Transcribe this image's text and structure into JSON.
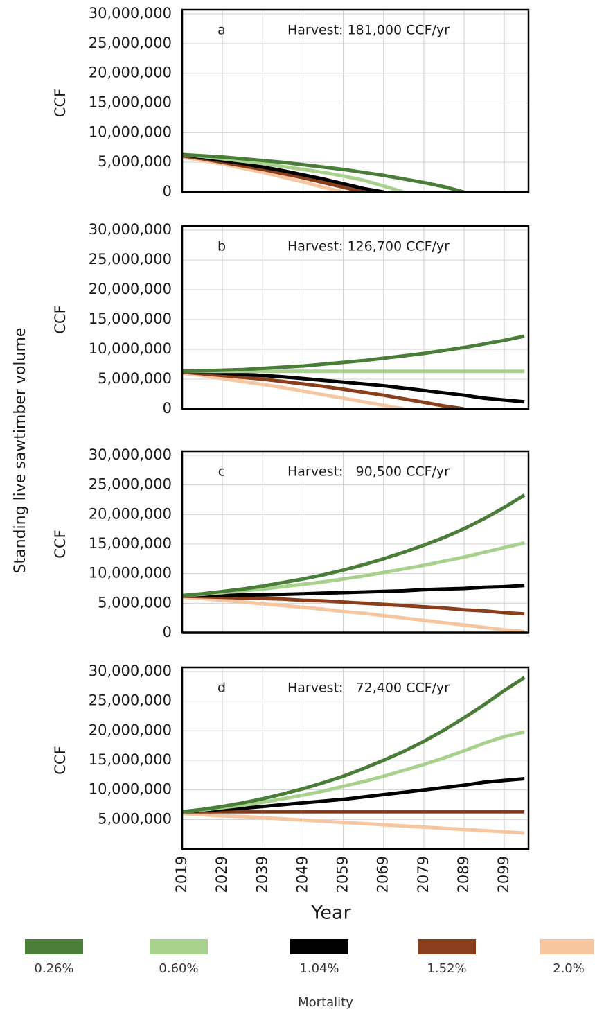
{
  "ylabel_common": "Standing live sawtimber volume",
  "legend": {
    "title": "Mortality"
  },
  "chart_data": [
    {
      "type": "line",
      "annotation_letter": "a",
      "annotation": "Harvest: 181,000 CCF/yr",
      "ylabel": "CCF",
      "x": [
        2019,
        2024,
        2029,
        2034,
        2039,
        2044,
        2049,
        2054,
        2059,
        2064,
        2069,
        2074,
        2079,
        2084,
        2089,
        2094,
        2099,
        2104
      ],
      "xlim": [
        2019,
        2105
      ],
      "ylim": [
        0,
        30000000
      ],
      "grid": true,
      "yticks": [
        {
          "value": 30000000,
          "label": "30,000,000"
        },
        {
          "value": 25000000,
          "label": "25,000,000"
        },
        {
          "value": 20000000,
          "label": "20,000,000"
        },
        {
          "value": 15000000,
          "label": "15,000,000"
        },
        {
          "value": 10000000,
          "label": "10,000,000"
        },
        {
          "value": 5000000,
          "label": "5,000,000"
        },
        0
      ],
      "series": [
        {
          "name": "0.26%",
          "color": "#4a7d38",
          "values": [
            6300000.0,
            6100000.0,
            5900000.0,
            5600000.0,
            5300000.0,
            5000000.0,
            4600000.0,
            4200000.0,
            3800000.0,
            3300000.0,
            2800000.0,
            2200000.0,
            1600000.0,
            900000.0,
            0,
            null,
            null,
            null
          ]
        },
        {
          "name": "0.60%",
          "color": "#a9d18e",
          "values": [
            6300000.0,
            6000000.0,
            5600000.0,
            5200000.0,
            4800000.0,
            4300000.0,
            3800000.0,
            3300000.0,
            2700000.0,
            2000000.0,
            1000000.0,
            0,
            null,
            null,
            null,
            null,
            null,
            null
          ]
        },
        {
          "name": "1.04%",
          "color": "#000000",
          "values": [
            6300000.0,
            5800000.0,
            5300000.0,
            4800000.0,
            4200000.0,
            3600000.0,
            2900000.0,
            2200000.0,
            1400000.0,
            600000.0,
            0,
            null,
            null,
            null,
            null,
            null,
            null,
            null
          ]
        },
        {
          "name": "1.52%",
          "color": "#8b3e1c",
          "values": [
            6100000.0,
            5600000.0,
            5000000.0,
            4400000.0,
            3800000.0,
            3100000.0,
            2400000.0,
            1600000.0,
            800000.0,
            0,
            null,
            null,
            null,
            null,
            null,
            null,
            null,
            null
          ]
        },
        {
          "name": "2.0%",
          "color": "#f6c6a0",
          "values": [
            5900000.0,
            5300000.0,
            4700000.0,
            4000000.0,
            3300000.0,
            2500000.0,
            1700000.0,
            800000.0,
            0,
            null,
            null,
            null,
            null,
            null,
            null,
            null,
            null,
            null
          ]
        }
      ]
    },
    {
      "type": "line",
      "annotation_letter": "b",
      "annotation": "Harvest: 126,700 CCF/yr",
      "ylabel": "CCF",
      "x": [
        2019,
        2024,
        2029,
        2034,
        2039,
        2044,
        2049,
        2054,
        2059,
        2064,
        2069,
        2074,
        2079,
        2084,
        2089,
        2094,
        2099,
        2104
      ],
      "xlim": [
        2019,
        2105
      ],
      "ylim": [
        0,
        30000000
      ],
      "grid": true,
      "yticks": [
        {
          "value": 30000000,
          "label": "30,000,000"
        },
        {
          "value": 25000000,
          "label": "25,000,000"
        },
        {
          "value": 20000000,
          "label": "20,000,000"
        },
        {
          "value": 15000000,
          "label": "15,000,000"
        },
        {
          "value": 10000000,
          "label": "10,000,000"
        },
        {
          "value": 5000000,
          "label": "5,000,000"
        },
        0
      ],
      "series": [
        {
          "name": "0.26%",
          "color": "#4a7d38",
          "values": [
            6300000.0,
            6400000.0,
            6500000.0,
            6600000.0,
            6800000.0,
            7000000.0,
            7200000.0,
            7500000.0,
            7800000.0,
            8100000.0,
            8500000.0,
            8900000.0,
            9300000.0,
            9800000.0,
            10300000.0,
            10900000.0,
            11500000.0,
            12200000.0
          ]
        },
        {
          "name": "0.60%",
          "color": "#a9d18e",
          "values": [
            6300000.0,
            6300000.0,
            6300000.0,
            6300000.0,
            6300000.0,
            6300000.0,
            6300000.0,
            6300000.0,
            6300000.0,
            6300000.0,
            6300000.0,
            6300000.0,
            6300000.0,
            6300000.0,
            6300000.0,
            6300000.0,
            6300000.0,
            6300000.0
          ]
        },
        {
          "name": "1.04%",
          "color": "#000000",
          "values": [
            6300000.0,
            6200000.0,
            6000000.0,
            5800000.0,
            5600000.0,
            5400000.0,
            5100000.0,
            4800000.0,
            4500000.0,
            4200000.0,
            3900000.0,
            3500000.0,
            3100000.0,
            2700000.0,
            2300000.0,
            1800000.0,
            1500000.0,
            1200000.0
          ]
        },
        {
          "name": "1.52%",
          "color": "#8b3e1c",
          "values": [
            6200000.0,
            5900000.0,
            5600000.0,
            5300000.0,
            5000000.0,
            4600000.0,
            4200000.0,
            3800000.0,
            3300000.0,
            2800000.0,
            2300000.0,
            1700000.0,
            1100000.0,
            500000.0,
            0,
            null,
            null,
            null
          ]
        },
        {
          "name": "2.0%",
          "color": "#f6c6a0",
          "values": [
            6000000.0,
            5600000.0,
            5100000.0,
            4600000.0,
            4100000.0,
            3600000.0,
            3000000.0,
            2400000.0,
            1800000.0,
            1200000.0,
            600000.0,
            0,
            null,
            null,
            null,
            null,
            null,
            null
          ]
        }
      ]
    },
    {
      "type": "line",
      "annotation_letter": "c",
      "annotation": "Harvest:   90,500 CCF/yr",
      "ylabel": "CCF",
      "x": [
        2019,
        2024,
        2029,
        2034,
        2039,
        2044,
        2049,
        2054,
        2059,
        2064,
        2069,
        2074,
        2079,
        2084,
        2089,
        2094,
        2099,
        2104
      ],
      "xlim": [
        2019,
        2105
      ],
      "ylim": [
        0,
        30000000
      ],
      "grid": true,
      "yticks": [
        {
          "value": 30000000,
          "label": "30,000,000"
        },
        {
          "value": 25000000,
          "label": "25,000,000"
        },
        {
          "value": 20000000,
          "label": "20,000,000"
        },
        {
          "value": 15000000,
          "label": "15,000,000"
        },
        {
          "value": 10000000,
          "label": "10,000,000"
        },
        {
          "value": 5000000,
          "label": "5,000,000"
        },
        0
      ],
      "series": [
        {
          "name": "0.26%",
          "color": "#4a7d38",
          "values": [
            6300000.0,
            6600000.0,
            7000000.0,
            7400000.0,
            7900000.0,
            8500000.0,
            9100000.0,
            9800000.0,
            10600000.0,
            11500000.0,
            12500000.0,
            13600000.0,
            14800000.0,
            16100000.0,
            17600000.0,
            19300000.0,
            21200000.0,
            23300000.0
          ]
        },
        {
          "name": "0.60%",
          "color": "#a9d18e",
          "values": [
            6300000.0,
            6500000.0,
            6800000.0,
            7100000.0,
            7400000.0,
            7800000.0,
            8200000.0,
            8600000.0,
            9100000.0,
            9600000.0,
            10200000.0,
            10800000.0,
            11400000.0,
            12100000.0,
            12800000.0,
            13600000.0,
            14400000.0,
            15200000.0
          ]
        },
        {
          "name": "1.04%",
          "color": "#000000",
          "values": [
            6300000.0,
            6300000.0,
            6300000.0,
            6400000.0,
            6400000.0,
            6500000.0,
            6600000.0,
            6700000.0,
            6800000.0,
            6900000.0,
            7000000.0,
            7100000.0,
            7300000.0,
            7400000.0,
            7500000.0,
            7700000.0,
            7800000.0,
            8000000.0
          ]
        },
        {
          "name": "1.52%",
          "color": "#8b3e1c",
          "values": [
            6200000.0,
            6100000.0,
            6000000.0,
            5900000.0,
            5800000.0,
            5700000.0,
            5500000.0,
            5400000.0,
            5200000.0,
            5000000.0,
            4800000.0,
            4600000.0,
            4400000.0,
            4200000.0,
            3900000.0,
            3700000.0,
            3400000.0,
            3200000.0
          ]
        },
        {
          "name": "2.0%",
          "color": "#f6c6a0",
          "values": [
            6000000.0,
            5800000.0,
            5500000.0,
            5200000.0,
            4900000.0,
            4600000.0,
            4300000.0,
            4000000.0,
            3600000.0,
            3300000.0,
            2900000.0,
            2500000.0,
            2100000.0,
            1700000.0,
            1300000.0,
            900000.0,
            500000.0,
            200000.0
          ]
        }
      ]
    },
    {
      "type": "line",
      "annotation_letter": "d",
      "annotation": "Harvest:   72,400 CCF/yr",
      "ylabel": "CCF",
      "xlabel": "Year",
      "x": [
        2019,
        2024,
        2029,
        2034,
        2039,
        2044,
        2049,
        2054,
        2059,
        2064,
        2069,
        2074,
        2079,
        2084,
        2089,
        2094,
        2099,
        2104
      ],
      "xlim": [
        2019,
        2105
      ],
      "ylim": [
        0,
        30000000
      ],
      "grid": true,
      "xticks": [
        2019,
        2029,
        2039,
        2049,
        2059,
        2069,
        2079,
        2089,
        2099
      ],
      "yticks": [
        {
          "value": 30000000,
          "label": "30,000,000"
        },
        {
          "value": 25000000,
          "label": "25,000,000"
        },
        {
          "value": 20000000,
          "label": "20,000,000"
        },
        {
          "value": 15000000,
          "label": "15,000,000"
        },
        {
          "value": 10000000,
          "label": "10,000,000"
        },
        {
          "value": 5000000,
          "label": "5,000,000"
        }
      ],
      "series": [
        {
          "name": "0.26%",
          "color": "#4a7d38",
          "values": [
            6300000.0,
            6700000.0,
            7200000.0,
            7800000.0,
            8500000.0,
            9300000.0,
            10200000.0,
            11200000.0,
            12300000.0,
            13600000.0,
            15000000.0,
            16500000.0,
            18200000.0,
            20100000.0,
            22200000.0,
            24400000.0,
            26800000.0,
            29000000.0
          ]
        },
        {
          "name": "0.60%",
          "color": "#a9d18e",
          "values": [
            6300000.0,
            6600000.0,
            7000000.0,
            7400000.0,
            7900000.0,
            8500000.0,
            9100000.0,
            9800000.0,
            10600000.0,
            11400000.0,
            12300000.0,
            13300000.0,
            14300000.0,
            15400000.0,
            16600000.0,
            17900000.0,
            19000000.0,
            19800000.0
          ]
        },
        {
          "name": "1.04%",
          "color": "#000000",
          "values": [
            6300000.0,
            6500000.0,
            6700000.0,
            6900000.0,
            7200000.0,
            7500000.0,
            7800000.0,
            8100000.0,
            8400000.0,
            8800000.0,
            9200000.0,
            9600000.0,
            10000000.0,
            10400000.0,
            10800000.0,
            11300000.0,
            11600000.0,
            11900000.0
          ]
        },
        {
          "name": "1.52%",
          "color": "#8b3e1c",
          "values": [
            6300000.0,
            6300000.0,
            6300000.0,
            6300000.0,
            6300000.0,
            6300000.0,
            6300000.0,
            6300000.0,
            6300000.0,
            6300000.0,
            6300000.0,
            6300000.0,
            6300000.0,
            6300000.0,
            6300000.0,
            6300000.0,
            6300000.0,
            6300000.0
          ]
        },
        {
          "name": "2.0%",
          "color": "#f6c6a0",
          "values": [
            6000000.0,
            5800000.0,
            5600000.0,
            5500000.0,
            5300000.0,
            5100000.0,
            4900000.0,
            4700000.0,
            4500000.0,
            4300000.0,
            4100000.0,
            3900000.0,
            3700000.0,
            3500000.0,
            3300000.0,
            3100000.0,
            2900000.0,
            2700000.0
          ]
        }
      ]
    }
  ]
}
